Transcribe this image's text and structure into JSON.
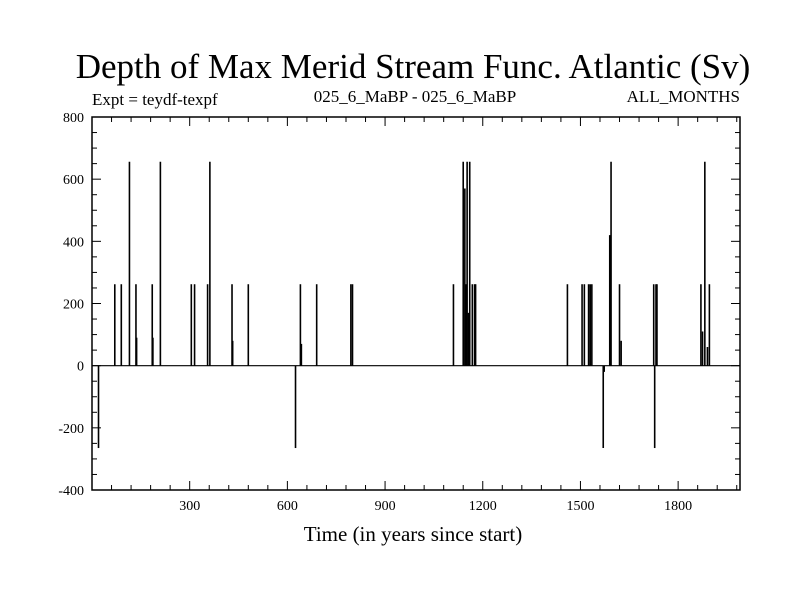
{
  "chart_data": {
    "type": "line",
    "title": "Depth of Max Merid Stream Func. Atlantic (Sv)",
    "subtitle_left": "Expt = teydf-texpf",
    "subtitle_center": "025_6_MaBP - 025_6_MaBP",
    "subtitle_right": "ALL_MONTHS",
    "xlabel": "Time (in years since start)",
    "ylabel": "",
    "xlim": [
      0,
      1990
    ],
    "ylim": [
      -400,
      800
    ],
    "x_ticks": [
      300,
      600,
      900,
      1200,
      1500,
      1800
    ],
    "y_ticks": [
      -400,
      -200,
      0,
      200,
      400,
      600,
      800
    ],
    "grid": false,
    "series": [
      {
        "name": "",
        "color": "#000000",
        "baseline": 0,
        "spikes": [
          {
            "x": 20,
            "y": -265
          },
          {
            "x": 70,
            "y": 262
          },
          {
            "x": 90,
            "y": 262
          },
          {
            "x": 115,
            "y": 656
          },
          {
            "x": 135,
            "y": 262
          },
          {
            "x": 137,
            "y": 90
          },
          {
            "x": 185,
            "y": 262
          },
          {
            "x": 187,
            "y": 90
          },
          {
            "x": 210,
            "y": 656
          },
          {
            "x": 305,
            "y": 262
          },
          {
            "x": 315,
            "y": 262
          },
          {
            "x": 355,
            "y": 262
          },
          {
            "x": 362,
            "y": 656
          },
          {
            "x": 430,
            "y": 262
          },
          {
            "x": 432,
            "y": 80
          },
          {
            "x": 480,
            "y": 262
          },
          {
            "x": 625,
            "y": -265
          },
          {
            "x": 640,
            "y": 262
          },
          {
            "x": 643,
            "y": 70
          },
          {
            "x": 690,
            "y": 262
          },
          {
            "x": 795,
            "y": 262
          },
          {
            "x": 800,
            "y": 262
          },
          {
            "x": 1110,
            "y": 262
          },
          {
            "x": 1140,
            "y": 656
          },
          {
            "x": 1145,
            "y": 570
          },
          {
            "x": 1148,
            "y": 262
          },
          {
            "x": 1152,
            "y": 656
          },
          {
            "x": 1156,
            "y": 170
          },
          {
            "x": 1160,
            "y": 656
          },
          {
            "x": 1168,
            "y": 262
          },
          {
            "x": 1175,
            "y": 262
          },
          {
            "x": 1178,
            "y": 262
          },
          {
            "x": 1460,
            "y": 262
          },
          {
            "x": 1505,
            "y": 262
          },
          {
            "x": 1512,
            "y": 262
          },
          {
            "x": 1525,
            "y": 262
          },
          {
            "x": 1530,
            "y": 262
          },
          {
            "x": 1535,
            "y": 262
          },
          {
            "x": 1570,
            "y": -265
          },
          {
            "x": 1573,
            "y": -20
          },
          {
            "x": 1590,
            "y": 420
          },
          {
            "x": 1594,
            "y": 656
          },
          {
            "x": 1620,
            "y": 262
          },
          {
            "x": 1625,
            "y": 80
          },
          {
            "x": 1725,
            "y": 262
          },
          {
            "x": 1728,
            "y": -265
          },
          {
            "x": 1732,
            "y": 262
          },
          {
            "x": 1735,
            "y": 262
          },
          {
            "x": 1870,
            "y": 262
          },
          {
            "x": 1875,
            "y": 110
          },
          {
            "x": 1882,
            "y": 656
          },
          {
            "x": 1890,
            "y": 60
          },
          {
            "x": 1896,
            "y": 262
          }
        ]
      }
    ]
  }
}
